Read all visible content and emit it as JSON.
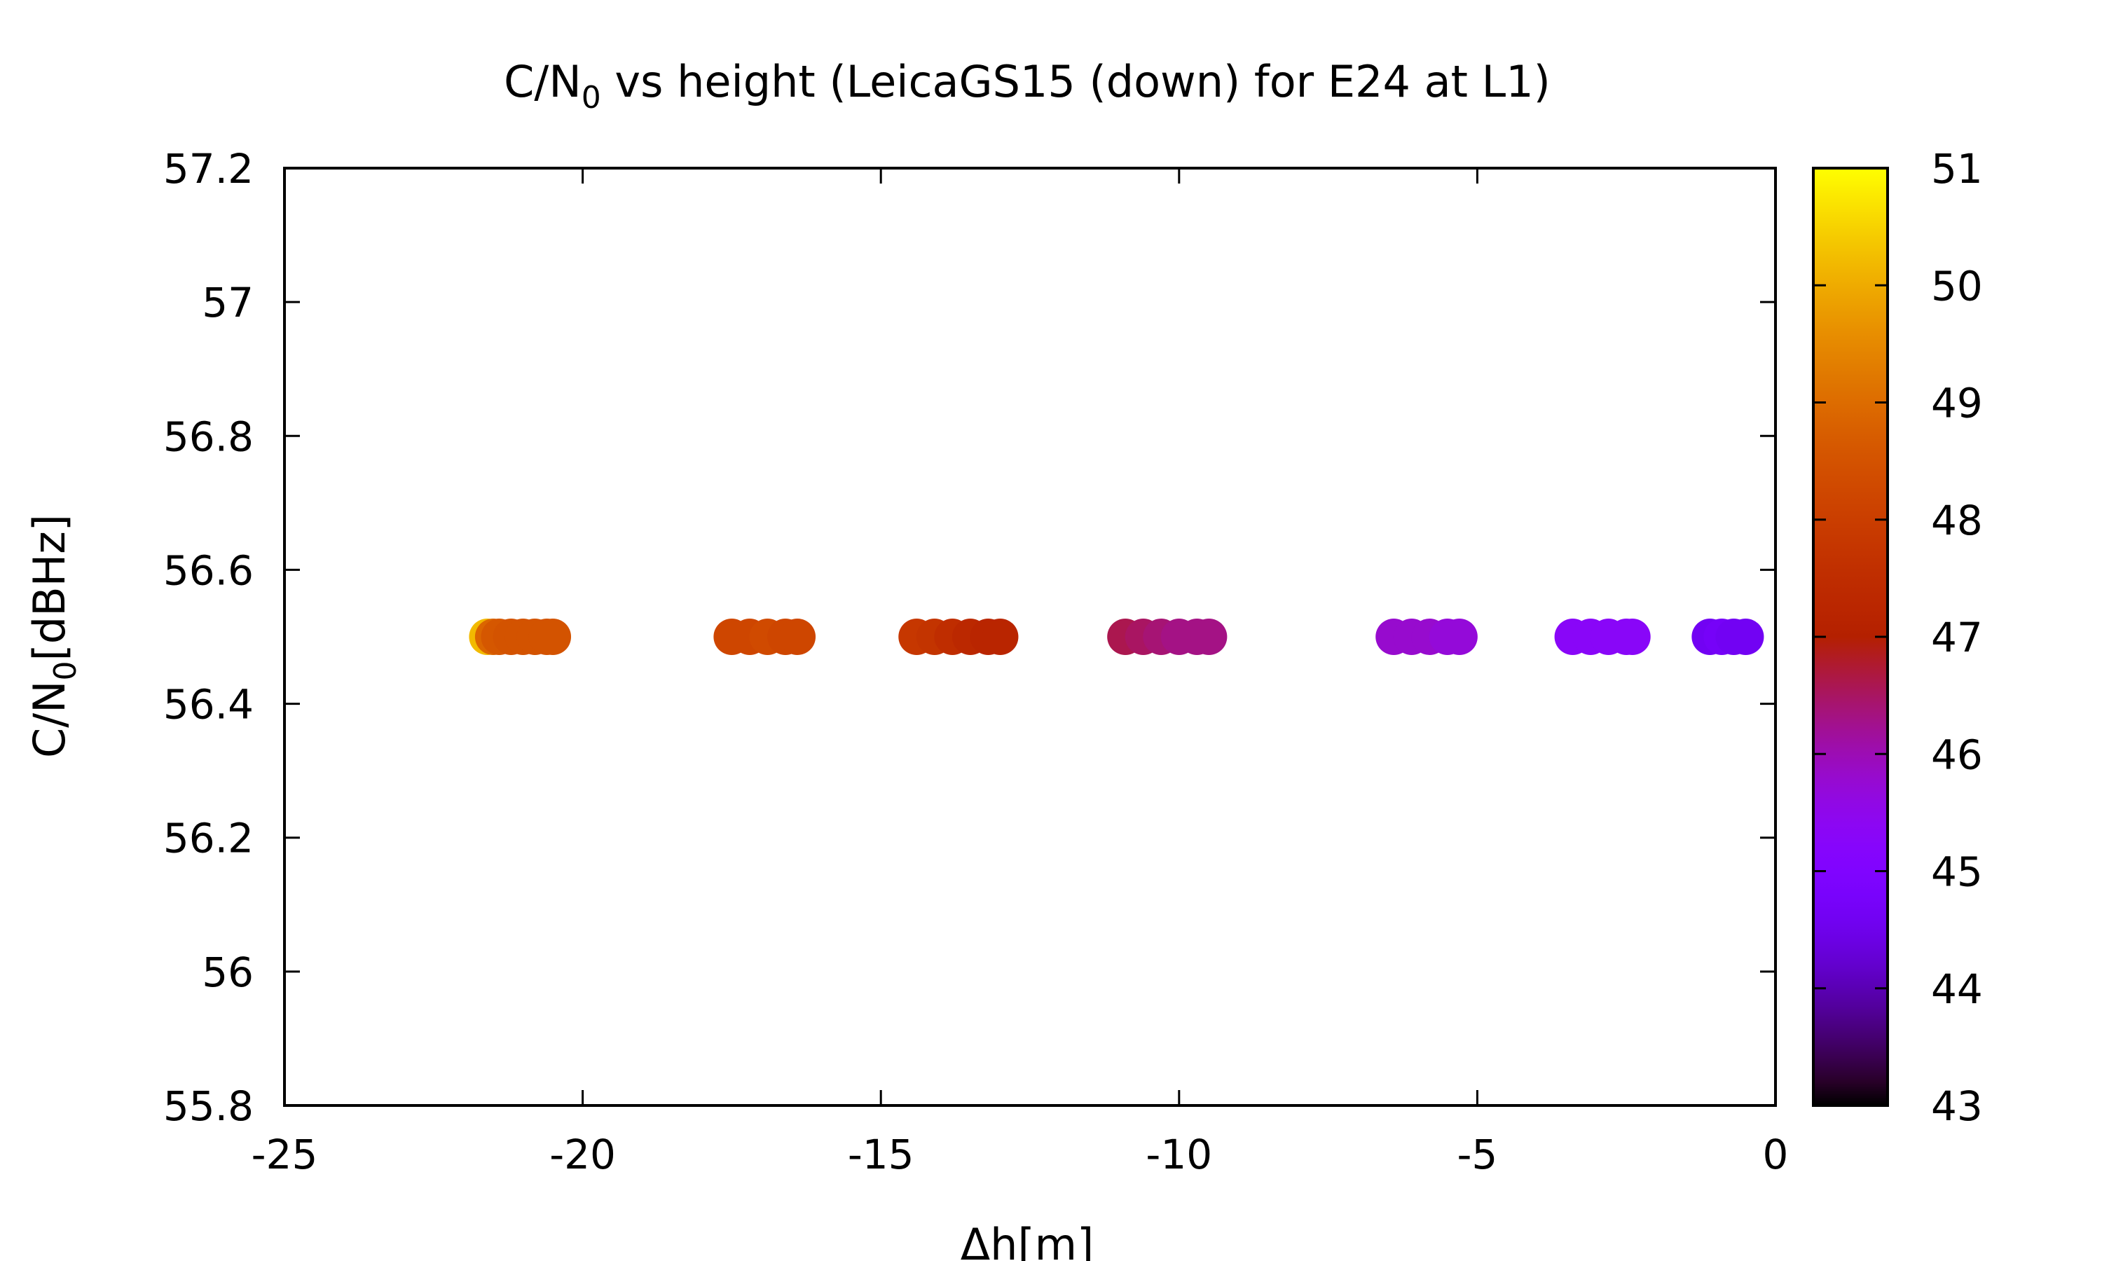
{
  "chart_data": {
    "type": "scatter",
    "title_main": "C/N",
    "title_sub": "0",
    "title_rest": " vs height (LeicaGS15 (down) for E24 at L1)",
    "xlabel": "Δh[m]",
    "ylabel_main": "C/N",
    "ylabel_sub": "0",
    "ylabel_rest": "[dBHz]",
    "xlim": [
      -25,
      0
    ],
    "ylim": [
      55.8,
      57.2
    ],
    "x_ticks": [
      "-25",
      "-20",
      "-15",
      "-10",
      "-5",
      "0"
    ],
    "y_ticks": [
      "55.8",
      "56",
      "56.2",
      "56.4",
      "56.6",
      "56.8",
      "57",
      "57.2"
    ],
    "colorbar": {
      "range": [
        43,
        51
      ],
      "ticks": [
        "43",
        "44",
        "45",
        "46",
        "47",
        "48",
        "49",
        "50",
        "51"
      ],
      "palette": "gnuplot pm3d (black-purple-red-yellow)"
    },
    "series": [
      {
        "points": [
          {
            "x": -21.6,
            "y": 56.5,
            "c": 50.2
          },
          {
            "x": -21.5,
            "y": 56.5,
            "c": 48.9
          },
          {
            "x": -21.4,
            "y": 56.5,
            "c": 48.6
          },
          {
            "x": -21.2,
            "y": 56.5,
            "c": 48.5
          },
          {
            "x": -21.0,
            "y": 56.5,
            "c": 48.5
          },
          {
            "x": -20.8,
            "y": 56.5,
            "c": 48.5
          },
          {
            "x": -20.6,
            "y": 56.5,
            "c": 48.5
          },
          {
            "x": -20.5,
            "y": 56.5,
            "c": 48.5
          },
          {
            "x": -17.5,
            "y": 56.5,
            "c": 48.2
          },
          {
            "x": -17.2,
            "y": 56.5,
            "c": 48.2
          },
          {
            "x": -16.9,
            "y": 56.5,
            "c": 48.3
          },
          {
            "x": -16.6,
            "y": 56.5,
            "c": 48.2
          },
          {
            "x": -16.4,
            "y": 56.5,
            "c": 48.2
          },
          {
            "x": -14.4,
            "y": 56.5,
            "c": 47.8
          },
          {
            "x": -14.1,
            "y": 56.5,
            "c": 47.7
          },
          {
            "x": -13.8,
            "y": 56.5,
            "c": 47.5
          },
          {
            "x": -13.5,
            "y": 56.5,
            "c": 47.3
          },
          {
            "x": -13.2,
            "y": 56.5,
            "c": 47.2
          },
          {
            "x": -13.0,
            "y": 56.5,
            "c": 47.2
          },
          {
            "x": -10.9,
            "y": 56.5,
            "c": 46.6
          },
          {
            "x": -10.6,
            "y": 56.5,
            "c": 46.5
          },
          {
            "x": -10.3,
            "y": 56.5,
            "c": 46.4
          },
          {
            "x": -10.0,
            "y": 56.5,
            "c": 46.3
          },
          {
            "x": -9.7,
            "y": 56.5,
            "c": 46.3
          },
          {
            "x": -9.5,
            "y": 56.5,
            "c": 46.3
          },
          {
            "x": -6.4,
            "y": 56.5,
            "c": 45.8
          },
          {
            "x": -6.1,
            "y": 56.5,
            "c": 45.8
          },
          {
            "x": -5.8,
            "y": 56.5,
            "c": 45.8
          },
          {
            "x": -5.5,
            "y": 56.5,
            "c": 45.7
          },
          {
            "x": -5.3,
            "y": 56.5,
            "c": 45.7
          },
          {
            "x": -3.4,
            "y": 56.5,
            "c": 45.3
          },
          {
            "x": -3.1,
            "y": 56.5,
            "c": 45.3
          },
          {
            "x": -2.8,
            "y": 56.5,
            "c": 45.3
          },
          {
            "x": -2.5,
            "y": 56.5,
            "c": 45.3
          },
          {
            "x": -2.4,
            "y": 56.5,
            "c": 45.3
          },
          {
            "x": -1.1,
            "y": 56.5,
            "c": 44.6
          },
          {
            "x": -0.9,
            "y": 56.5,
            "c": 44.7
          },
          {
            "x": -0.7,
            "y": 56.5,
            "c": 44.6
          },
          {
            "x": -0.5,
            "y": 56.5,
            "c": 44.6
          }
        ]
      }
    ]
  }
}
